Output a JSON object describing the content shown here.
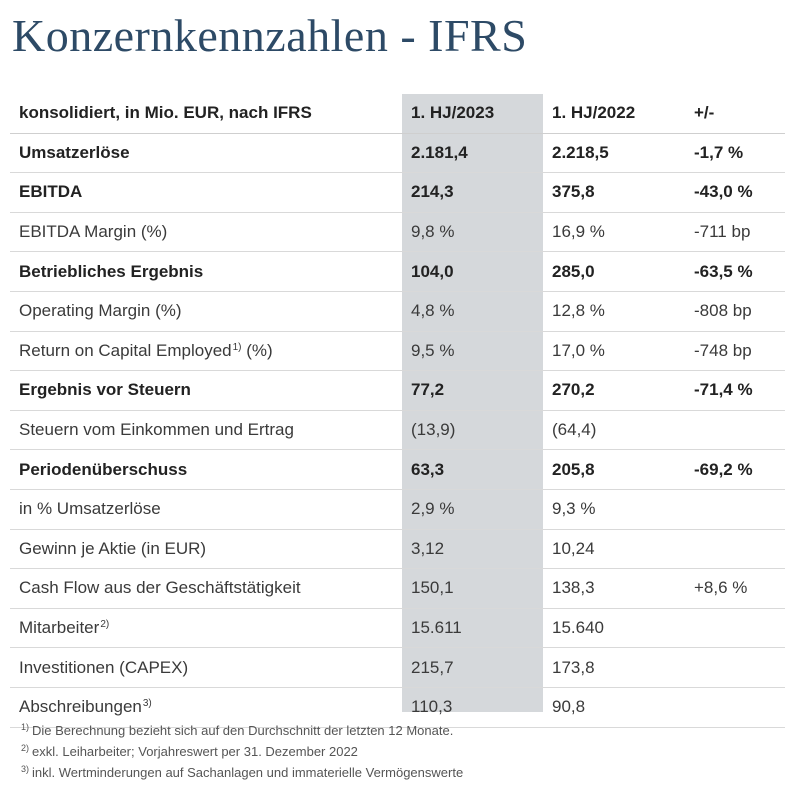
{
  "title": "Konzernkennzahlen - IFRS",
  "header": {
    "label": "konsolidiert, in Mio. EUR, nach IFRS",
    "col_2023": "1. HJ/2023",
    "col_2022": "1. HJ/2022",
    "col_delta": "+/-"
  },
  "rows": [
    {
      "label": "Umsatzerlöse",
      "sup": "",
      "v2023": "2.181,4",
      "v2022": "2.218,5",
      "delta": "-1,7 %",
      "bold": true
    },
    {
      "label": "EBITDA",
      "sup": "",
      "v2023": "214,3",
      "v2022": "375,8",
      "delta": "-43,0 %",
      "bold": true
    },
    {
      "label": "EBITDA Margin (%)",
      "sup": "",
      "v2023": "9,8 %",
      "v2022": "16,9 %",
      "delta": "-711 bp",
      "bold": false
    },
    {
      "label": "Betriebliches Ergebnis",
      "sup": "",
      "v2023": "104,0",
      "v2022": "285,0",
      "delta": "-63,5 %",
      "bold": true
    },
    {
      "label": "Operating Margin (%)",
      "sup": "",
      "v2023": "4,8 %",
      "v2022": "12,8 %",
      "delta": "-808 bp",
      "bold": false
    },
    {
      "label": "Return on Capital Employed",
      "sup": "1)",
      "suffix": " (%)",
      "v2023": "9,5 %",
      "v2022": "17,0 %",
      "delta": "-748 bp",
      "bold": false
    },
    {
      "label": "Ergebnis vor Steuern",
      "sup": "",
      "v2023": "77,2",
      "v2022": "270,2",
      "delta": "-71,4 %",
      "bold": true
    },
    {
      "label": "Steuern vom Einkommen und Ertrag",
      "sup": "",
      "v2023": "(13,9)",
      "v2022": "(64,4)",
      "delta": "",
      "bold": false
    },
    {
      "label": "Periodenüberschuss",
      "sup": "",
      "v2023": "63,3",
      "v2022": "205,8",
      "delta": "-69,2 %",
      "bold": true
    },
    {
      "label": "in % Umsatzerlöse",
      "sup": "",
      "v2023": "2,9 %",
      "v2022": "9,3 %",
      "delta": "",
      "bold": false
    },
    {
      "label": "Gewinn je Aktie (in EUR)",
      "sup": "",
      "v2023": "3,12",
      "v2022": "10,24",
      "delta": "",
      "bold": false
    },
    {
      "label": "Cash Flow aus der Geschäftstätigkeit",
      "sup": "",
      "v2023": "150,1",
      "v2022": "138,3",
      "delta": "+8,6 %",
      "bold": false
    },
    {
      "label": "Mitarbeiter",
      "sup": "2)",
      "v2023": "15.611",
      "v2022": "15.640",
      "delta": "",
      "bold": false
    },
    {
      "label": "Investitionen (CAPEX)",
      "sup": "",
      "v2023": "215,7",
      "v2022": "173,8",
      "delta": "",
      "bold": false
    },
    {
      "label": "Abschreibungen",
      "sup": "3)",
      "v2023": "110,3",
      "v2022": "90,8",
      "delta": "",
      "bold": false
    }
  ],
  "footnotes": [
    {
      "mark": "1)",
      "text": "Die Berechnung bezieht sich auf den Durchschnitt der letzten 12 Monate."
    },
    {
      "mark": "2)",
      "text": "exkl. Leiharbeiter; Vorjahreswert per 31. Dezember 2022"
    },
    {
      "mark": "3)",
      "text": "inkl. Wertminderungen auf Sachanlagen und immaterielle Vermögenswerte"
    }
  ]
}
